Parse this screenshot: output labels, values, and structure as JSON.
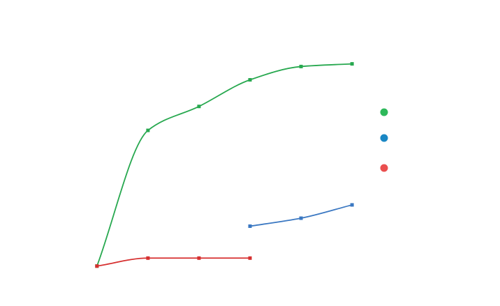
{
  "chart_data": {
    "type": "line",
    "title": "",
    "xlabel": "",
    "ylabel": "",
    "x": [
      0,
      1,
      2,
      3,
      4,
      5
    ],
    "xlim": [
      -1.9,
      7.9
    ],
    "ylim": [
      -0.15,
      1.0
    ],
    "grid": false,
    "legend_position": "right",
    "smooth": true,
    "series": [
      {
        "color": "#27a84f",
        "marker": "square",
        "points": [
          [
            0,
            0.0
          ],
          [
            1,
            0.51
          ],
          [
            2,
            0.6
          ],
          [
            3,
            0.7
          ],
          [
            4,
            0.75
          ],
          [
            5,
            0.76
          ]
        ]
      },
      {
        "color": "#3b78c2",
        "marker": "square",
        "points": [
          [
            3,
            0.15
          ],
          [
            4,
            0.18
          ],
          [
            5,
            0.23
          ]
        ]
      },
      {
        "color": "#d62f2f",
        "marker": "square",
        "points": [
          [
            0,
            0.0
          ],
          [
            1,
            0.03
          ],
          [
            2,
            0.03
          ],
          [
            3,
            0.03
          ]
        ]
      }
    ],
    "legend": [
      {
        "color": "#2db85a"
      },
      {
        "color": "#1a87c4"
      },
      {
        "color": "#ea4f4f"
      }
    ]
  }
}
